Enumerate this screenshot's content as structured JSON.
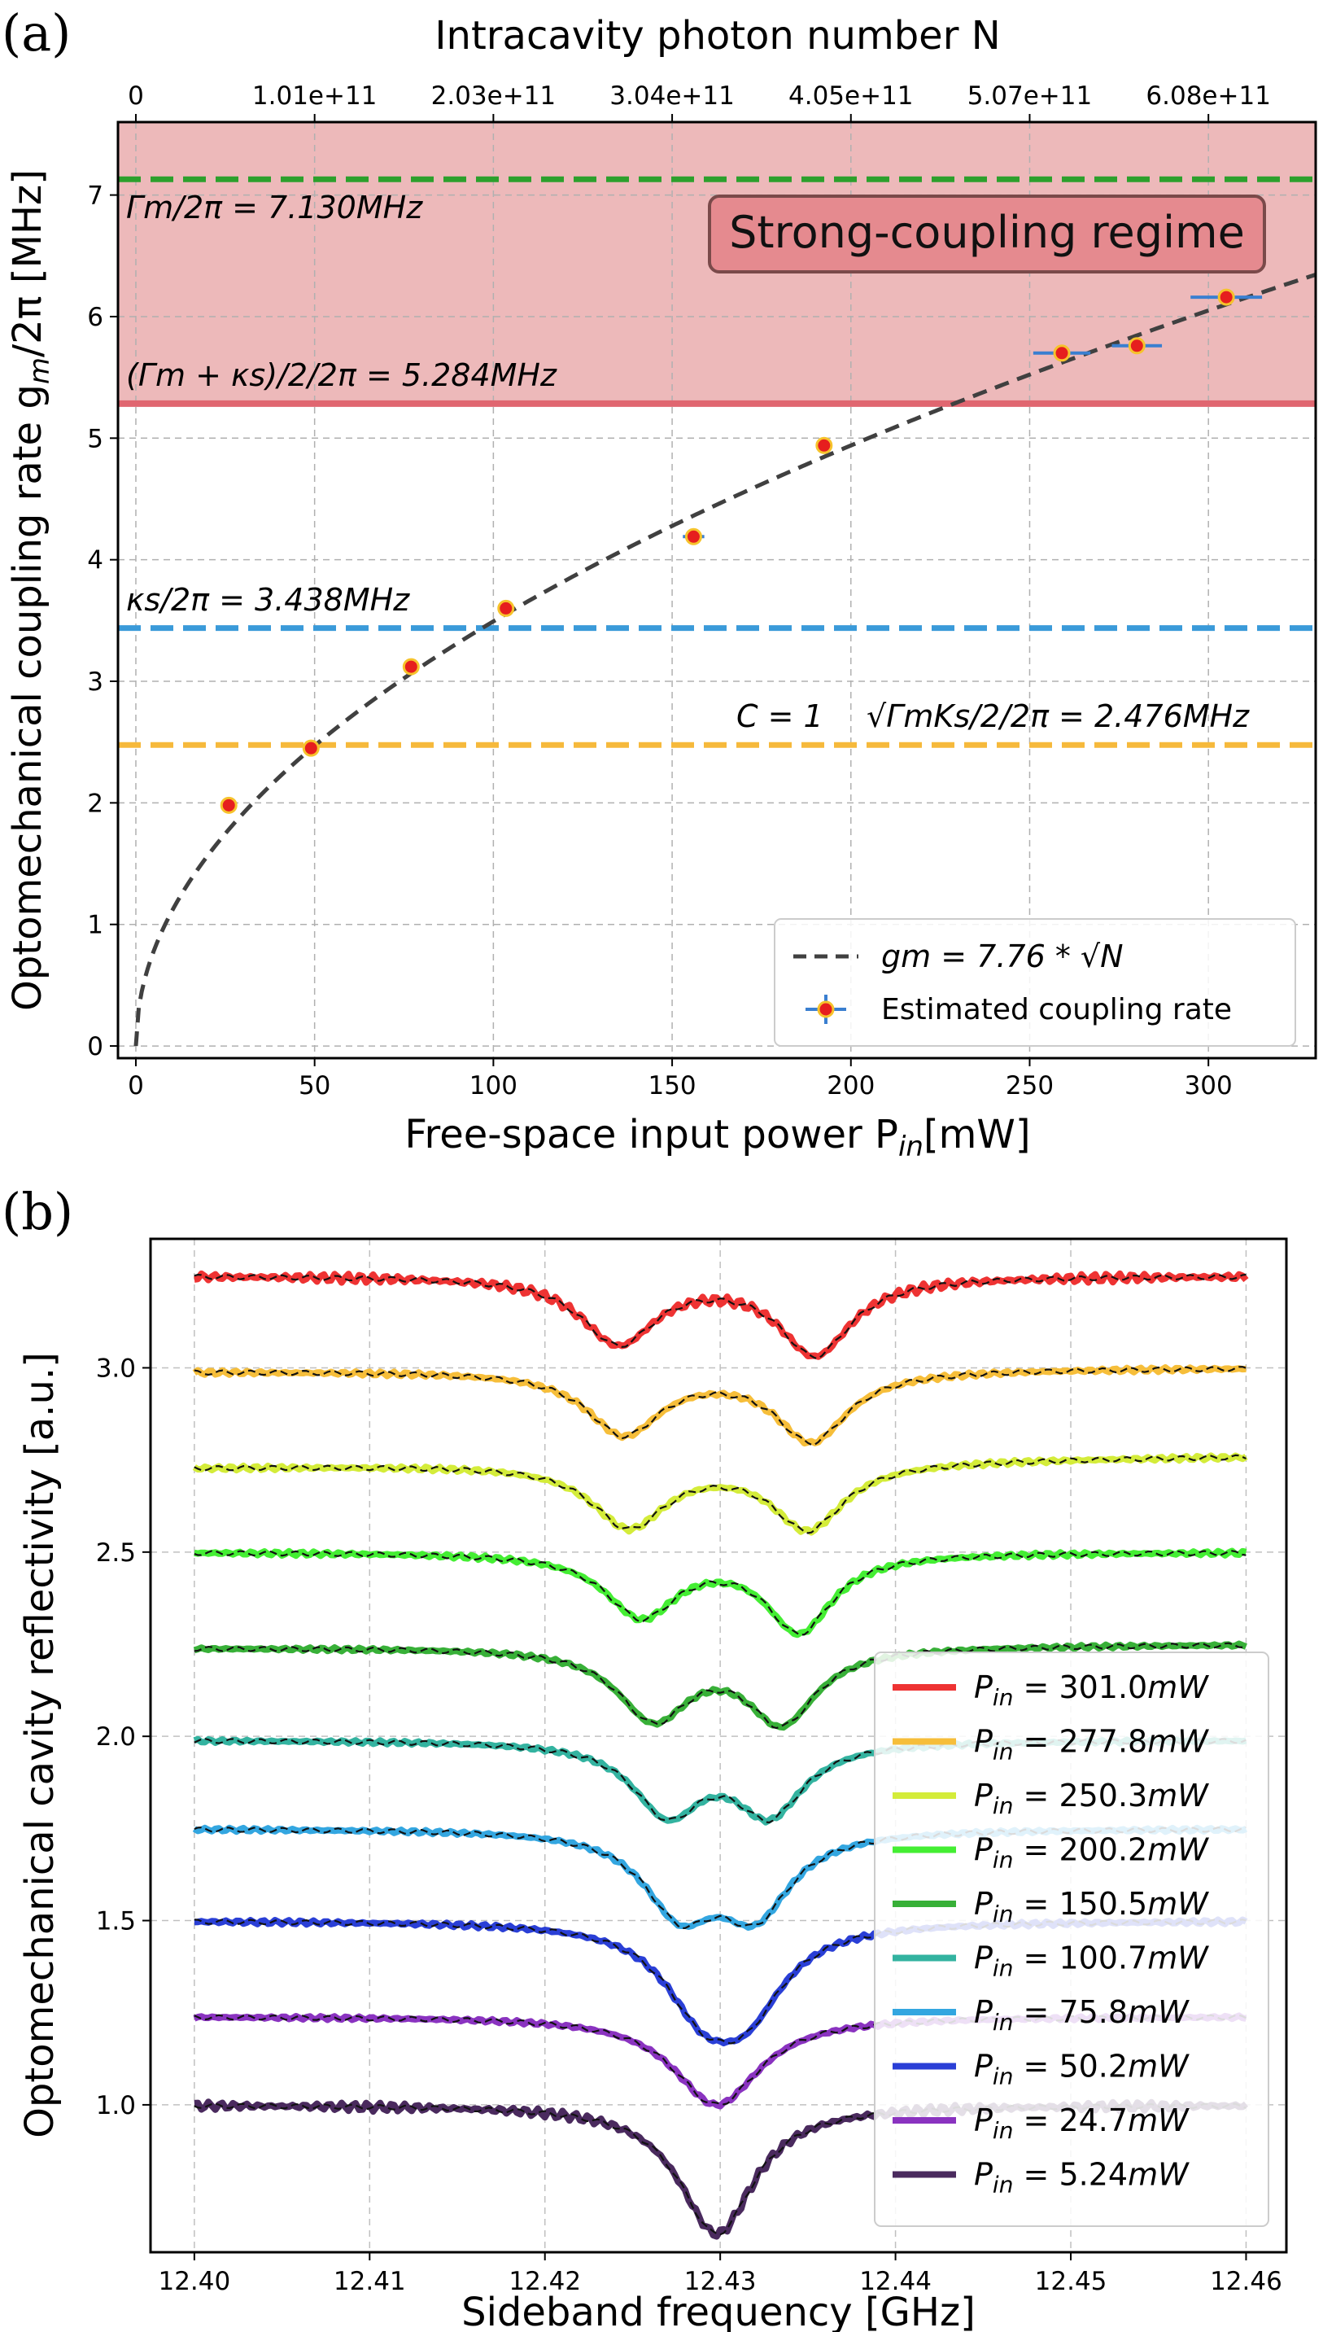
{
  "chart_data": [
    {
      "panel": "(a)",
      "type": "scatter",
      "xlabel": "Free-space input power P_in[mW]",
      "ylabel": "Optomechanical coupling rate g_m/2π [MHz]",
      "top_xlabel": "Intracavity photon number N",
      "xlim": [
        -5,
        330
      ],
      "ylim": [
        -0.1,
        7.6
      ],
      "xticks": [
        0,
        50,
        100,
        150,
        200,
        250,
        300
      ],
      "yticks": [
        0,
        1,
        2,
        3,
        4,
        5,
        6,
        7
      ],
      "top_ticks": [
        {
          "p": 0,
          "label": "0"
        },
        {
          "p": 50,
          "label": "1.01e+11"
        },
        {
          "p": 100,
          "label": "2.03e+11"
        },
        {
          "p": 150,
          "label": "3.04e+11"
        },
        {
          "p": 200,
          "label": "4.05e+11"
        },
        {
          "p": 250,
          "label": "5.07e+11"
        },
        {
          "p": 300,
          "label": "6.08e+11"
        }
      ],
      "grid": true,
      "shaded_region": {
        "from": 5.284,
        "to": 7.6,
        "color": "#e7a1a3",
        "label": "Strong-coupling regime"
      },
      "hlines": [
        {
          "y": 7.13,
          "color": "#2ca02c",
          "style": "dashed",
          "label": "Γm/2π = 7.130MHz"
        },
        {
          "y": 5.284,
          "color": "#e06670",
          "style": "solid",
          "label": "(Γm + κs)/2/2π = 5.284MHz"
        },
        {
          "y": 3.438,
          "color": "#3a9ad9",
          "style": "dashed",
          "label": "κs/2π = 3.438MHz"
        },
        {
          "y": 2.476,
          "color": "#f6b93b",
          "style": "dashed",
          "label": "√(Γmκs)/2/2π = 2.476MHz",
          "extra_label": "C = 1"
        }
      ],
      "fit": {
        "label": "gm = 7.76 * √N",
        "coef": 0.3493,
        "color": "#404040"
      },
      "points": [
        {
          "x": 26,
          "y": 1.98,
          "xerr": 0
        },
        {
          "x": 49,
          "y": 2.45,
          "xerr": 1.5
        },
        {
          "x": 77,
          "y": 3.12,
          "xerr": 2
        },
        {
          "x": 103.5,
          "y": 3.6,
          "xerr": 2
        },
        {
          "x": 156,
          "y": 4.19,
          "xerr": 3
        },
        {
          "x": 192.5,
          "y": 4.94,
          "xerr": 2
        },
        {
          "x": 259,
          "y": 5.7,
          "xerr": 8
        },
        {
          "x": 280,
          "y": 5.76,
          "xerr": 7
        },
        {
          "x": 305,
          "y": 6.16,
          "xerr": 10
        }
      ],
      "legend": {
        "placement": "lower-right",
        "fit_label": "gm = 7.76 * √N",
        "points_label": "Estimated coupling rate"
      }
    },
    {
      "panel": "(b)",
      "type": "line",
      "xlabel": "Sideband frequency [GHz]",
      "ylabel": "Optomechanical cavity reflectivity [a.u.]",
      "xlim": [
        12.3975,
        12.4623
      ],
      "ylim": [
        0.6,
        3.35
      ],
      "xticks": [
        "12.40",
        "12.41",
        "12.42",
        "12.43",
        "12.44",
        "12.45",
        "12.46"
      ],
      "xtick_values": [
        12.4,
        12.41,
        12.42,
        12.43,
        12.44,
        12.45,
        12.46
      ],
      "yticks": [
        "1.0",
        "1.5",
        "2.0",
        "2.5",
        "3.0"
      ],
      "ytick_values": [
        1.0,
        1.5,
        2.0,
        2.5,
        3.0
      ],
      "grid": true,
      "legend_placement": "lower-right",
      "series": [
        {
          "name": "P_in = 301.0mW",
          "label_main": "P",
          "label_sub": "in",
          "label_value": " = 301.0",
          "label_unit": "mW",
          "color": "#ee3333",
          "baseline": 3.25,
          "dips": [
            {
              "f": 12.4242,
              "depth": 0.18,
              "w": 0.0026
            },
            {
              "f": 12.4354,
              "depth": 0.21,
              "w": 0.0025
            }
          ],
          "trend": 0.0,
          "noise": 0.012
        },
        {
          "name": "P_in = 277.8mW",
          "label_main": "P",
          "label_sub": "in",
          "label_value": " = 277.8",
          "label_unit": "mW",
          "color": "#f6be3a",
          "baseline": 2.99,
          "dips": [
            {
              "f": 12.4245,
              "depth": 0.17,
              "w": 0.0026
            },
            {
              "f": 12.4352,
              "depth": 0.19,
              "w": 0.0025
            }
          ],
          "trend": 0.01,
          "noise": 0.006
        },
        {
          "name": "P_in = 250.3mW",
          "label_main": "P",
          "label_sub": "in",
          "label_value": " = 250.3",
          "label_unit": "mW",
          "color": "#d4ec3a",
          "baseline": 2.73,
          "dips": [
            {
              "f": 12.4248,
              "depth": 0.17,
              "w": 0.0026
            },
            {
              "f": 12.435,
              "depth": 0.18,
              "w": 0.0025
            }
          ],
          "trend": 0.03,
          "noise": 0.006
        },
        {
          "name": "P_in = 200.2mW",
          "label_main": "P",
          "label_sub": "in",
          "label_value": " = 200.2",
          "label_unit": "mW",
          "color": "#44ee33",
          "baseline": 2.5,
          "dips": [
            {
              "f": 12.4255,
              "depth": 0.17,
              "w": 0.0025
            },
            {
              "f": 12.4345,
              "depth": 0.21,
              "w": 0.0023
            }
          ],
          "trend": 0.0,
          "noise": 0.006
        },
        {
          "name": "P_in = 150.5mW",
          "label_main": "P",
          "label_sub": "in",
          "label_value": " = 150.5",
          "label_unit": "mW",
          "color": "#38b038",
          "baseline": 2.24,
          "dips": [
            {
              "f": 12.4262,
              "depth": 0.19,
              "w": 0.0025
            },
            {
              "f": 12.4335,
              "depth": 0.2,
              "w": 0.0024
            }
          ],
          "trend": 0.01,
          "noise": 0.005
        },
        {
          "name": "P_in = 100.7mW",
          "label_main": "P",
          "label_sub": "in",
          "label_value": " = 100.7",
          "label_unit": "mW",
          "color": "#33b3a0",
          "baseline": 1.99,
          "dips": [
            {
              "f": 12.427,
              "depth": 0.19,
              "w": 0.0024
            },
            {
              "f": 12.4328,
              "depth": 0.19,
              "w": 0.0024
            }
          ],
          "trend": 0.0,
          "noise": 0.005
        },
        {
          "name": "P_in = 75.8mW",
          "label_main": "P",
          "label_sub": "in",
          "label_value": " = 75.8",
          "label_unit": "mW",
          "color": "#33a6e0",
          "baseline": 1.75,
          "dips": [
            {
              "f": 12.4277,
              "depth": 0.21,
              "w": 0.0025
            },
            {
              "f": 12.432,
              "depth": 0.21,
              "w": 0.0025
            }
          ],
          "trend": 0.0,
          "noise": 0.005
        },
        {
          "name": "P_in = 50.2mW",
          "label_main": "P",
          "label_sub": "in",
          "label_value": " = 50.2",
          "label_unit": "mW",
          "color": "#2a3fd6",
          "baseline": 1.5,
          "dips": [
            {
              "f": 12.429,
              "depth": 0.2,
              "w": 0.0027
            },
            {
              "f": 12.4315,
              "depth": 0.2,
              "w": 0.0027
            }
          ],
          "trend": 0.0,
          "noise": 0.006
        },
        {
          "name": "P_in = 24.7mW",
          "label_main": "P",
          "label_sub": "in",
          "label_value": " = 24.7",
          "label_unit": "mW",
          "color": "#8a33c0",
          "baseline": 1.24,
          "dips": [
            {
              "f": 12.4298,
              "depth": 0.24,
              "w": 0.003
            }
          ],
          "trend": 0.0,
          "noise": 0.005
        },
        {
          "name": "P_in = 5.24mW",
          "label_main": "P",
          "label_sub": "in",
          "label_value": " = 5.24",
          "label_unit": "mW",
          "color": "#4a2a5e",
          "baseline": 1.0,
          "dips": [
            {
              "f": 12.4298,
              "depth": 0.35,
              "w": 0.0026
            }
          ],
          "trend": 0.0,
          "noise": 0.012
        }
      ]
    }
  ],
  "annotations": {
    "panel_a": "(a)",
    "panel_b": "(b)",
    "top_axis_title": "Intracavity photon number N",
    "gamma_m": "Γm/2π = 7.130MHz",
    "half_sum": "(Γm + κs)/2/2π = 5.284MHz",
    "kappa_s": "κs/2π = 3.438MHz",
    "c_equals_1": "C = 1",
    "geo_mean": "√ΓmKs/2/2π = 2.476MHz",
    "regime": "Strong-coupling regime",
    "xlabel_a": "Free-space input power P",
    "xlabel_a_sub": "in",
    "xlabel_a_unit": "[mW]",
    "ylabel_a": "Optomechanical coupling rate g",
    "ylabel_a_sub": "m",
    "ylabel_a_rest": "/2π [MHz]",
    "xlabel_b": "Sideband frequency [GHz]",
    "ylabel_b": "Optomechanical cavity reflectivity [a.u.]",
    "legend_fit": "gm = 7.76 * √N",
    "legend_points": "Estimated coupling rate"
  }
}
